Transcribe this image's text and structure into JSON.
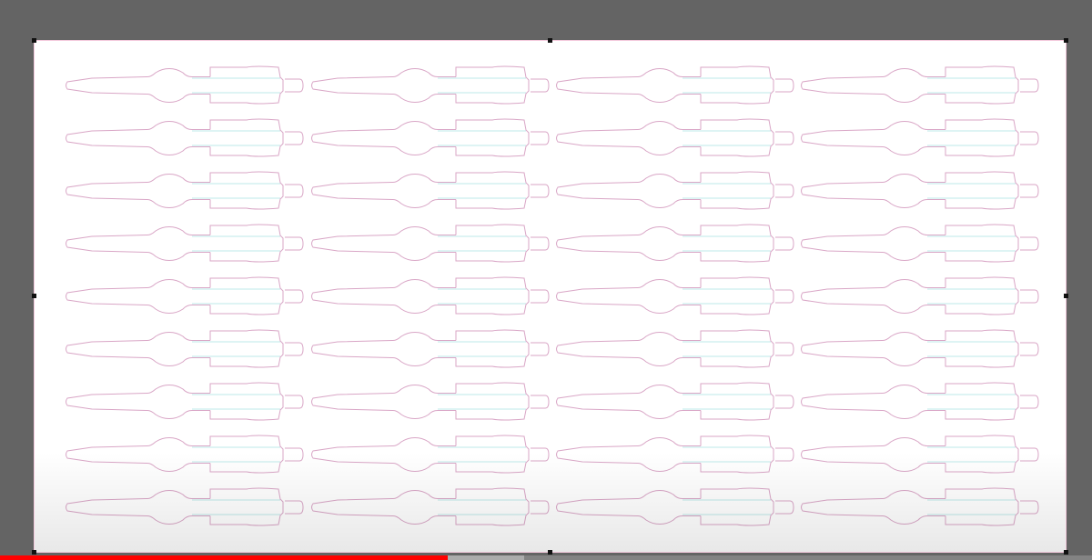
{
  "canvas": {
    "background_color": "#646464",
    "artboard_color": "#ffffff",
    "outline_color": "#d9a6c6",
    "accent_outline_color": "#a8e0e0"
  },
  "player": {
    "progress_percent": 41,
    "buffered_percent": 48,
    "progress_color": "#ff0000"
  }
}
